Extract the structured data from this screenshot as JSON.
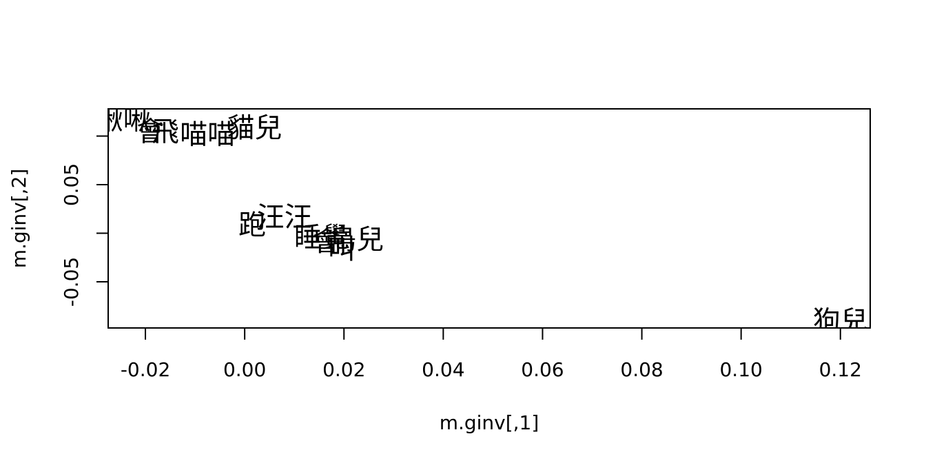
{
  "chart_data": {
    "type": "scatter",
    "title": "",
    "xlabel": "m.ginv[,1]",
    "ylabel": "m.ginv[,2]",
    "xlim": [
      -0.0275,
      0.126
    ],
    "ylim": [
      -0.0975,
      0.128
    ],
    "x_ticks": [
      -0.02,
      0.0,
      0.02,
      0.04,
      0.06,
      0.08,
      0.1,
      0.12
    ],
    "x_tick_labels": [
      "-0.02",
      "0.00",
      "0.02",
      "0.04",
      "0.06",
      "0.08",
      "0.10",
      "0.12"
    ],
    "y_ticks": [
      -0.05,
      0.0,
      0.05,
      0.1
    ],
    "y_tick_labels": [
      "-0.05",
      "",
      "0.05",
      ""
    ],
    "points": [
      {
        "label": "啾啾",
        "x": -0.0245,
        "y": 0.117
      },
      {
        "label": "飛",
        "x": -0.016,
        "y": 0.105
      },
      {
        "label": "會",
        "x": -0.019,
        "y": 0.105
      },
      {
        "label": "喵喵",
        "x": -0.0075,
        "y": 0.102
      },
      {
        "label": "貓兒",
        "x": 0.002,
        "y": 0.109
      },
      {
        "label": "跑",
        "x": 0.0015,
        "y": 0.009
      },
      {
        "label": "汪汪",
        "x": 0.008,
        "y": 0.017
      },
      {
        "label": "睡覺",
        "x": 0.0155,
        "y": -0.004
      },
      {
        "label": "會",
        "x": 0.0165,
        "y": -0.008
      },
      {
        "label": "叫",
        "x": 0.0195,
        "y": -0.016
      },
      {
        "label": "鳥兒",
        "x": 0.0225,
        "y": -0.006
      },
      {
        "label": "狗兒",
        "x": 0.12,
        "y": -0.09
      }
    ]
  }
}
